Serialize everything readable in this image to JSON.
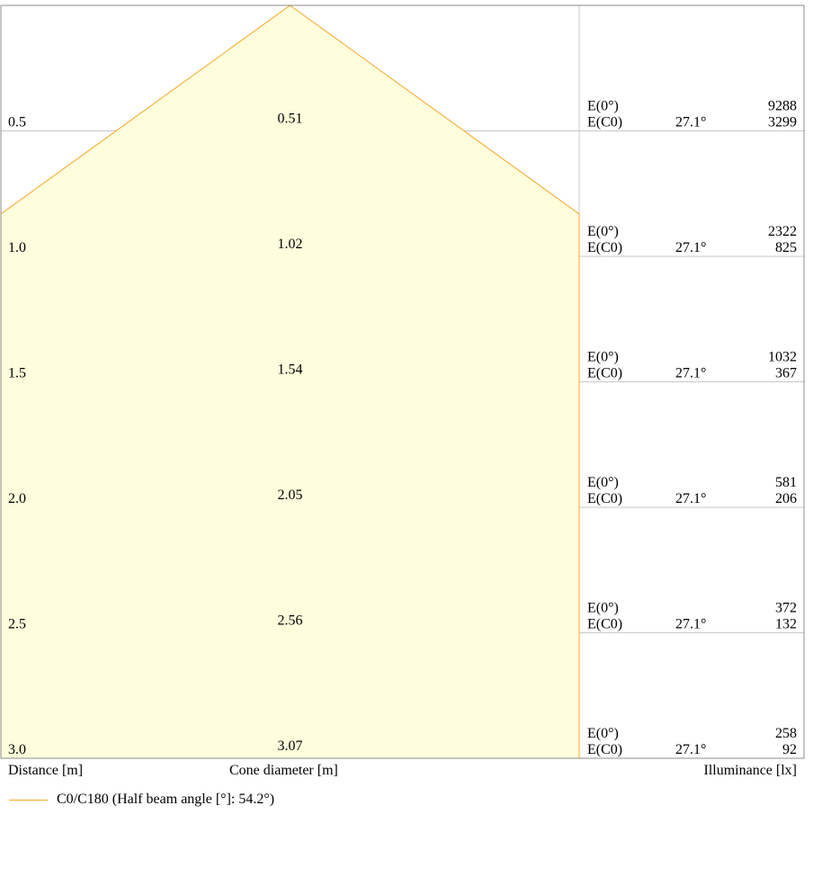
{
  "chart_data": {
    "type": "cone_diagram",
    "rows": [
      {
        "distance": "0.5",
        "diameter": "0.51",
        "angle": "27.1°",
        "e0": "9288",
        "ec0": "3299"
      },
      {
        "distance": "1.0",
        "diameter": "1.02",
        "angle": "27.1°",
        "e0": "2322",
        "ec0": "825"
      },
      {
        "distance": "1.5",
        "diameter": "1.54",
        "angle": "27.1°",
        "e0": "1032",
        "ec0": "367"
      },
      {
        "distance": "2.0",
        "diameter": "2.05",
        "angle": "27.1°",
        "e0": "581",
        "ec0": "206"
      },
      {
        "distance": "2.5",
        "diameter": "2.56",
        "angle": "27.1°",
        "e0": "372",
        "ec0": "132"
      },
      {
        "distance": "3.0",
        "diameter": "3.07",
        "angle": "27.1°",
        "e0": "258",
        "ec0": "92"
      }
    ],
    "e0_label": "E(0°)",
    "ec0_label": "E(C0)",
    "xlabel_distance": "Distance [m]",
    "xlabel_diameter": "Cone diameter [m]",
    "xlabel_illuminance": "Illuminance [lx]",
    "legend": "C0/C180 (Half beam angle [°]: 54.2°)",
    "half_beam_angle": 54.2,
    "max_distance": 3.0,
    "colors": {
      "cone_fill": "#fefddc",
      "cone_edge": "#f5a623",
      "grid": "#c8c8c8",
      "frame": "#8c8c8c"
    }
  }
}
